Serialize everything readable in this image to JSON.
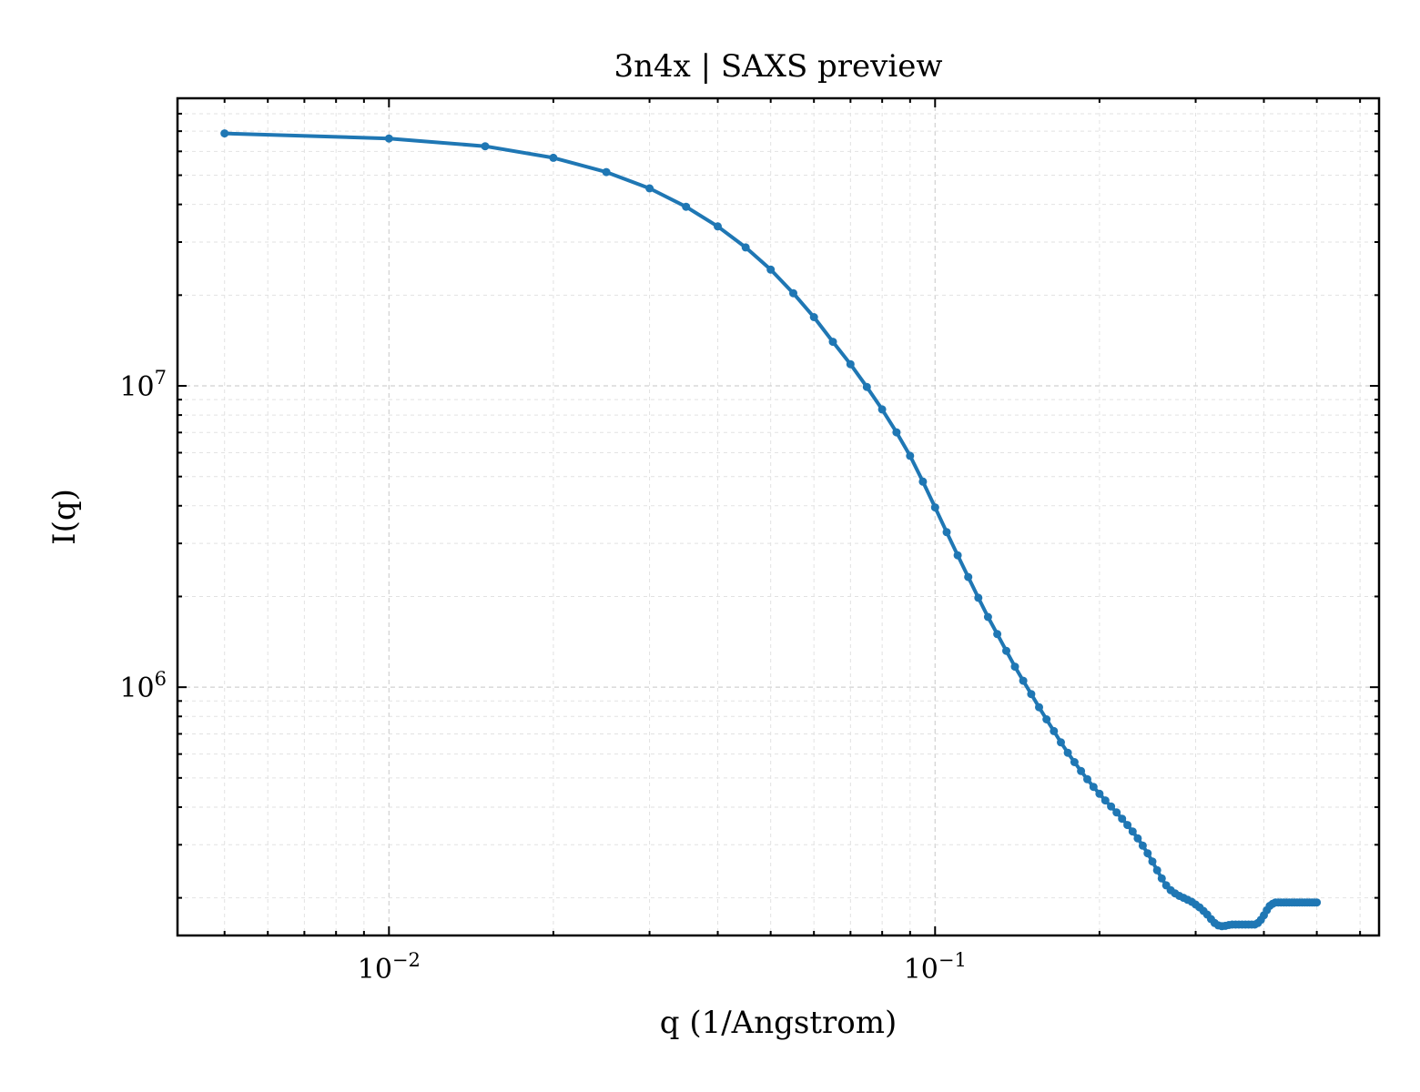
{
  "chart_data": {
    "type": "line",
    "title": "3n4x | SAXS preview",
    "xlabel": "q (1/Angstrom)",
    "ylabel": "I(q)",
    "xscale": "log",
    "yscale": "log",
    "xlim": [
      0.0041,
      0.65
    ],
    "ylim": [
      150000,
      90000000
    ],
    "grid": true,
    "legend": "none",
    "line_color": "#1f77b4",
    "x_ticks": [
      {
        "value": 0.01,
        "base": "10",
        "exp": "−2"
      },
      {
        "value": 0.1,
        "base": "10",
        "exp": "−1"
      }
    ],
    "y_ticks": [
      {
        "value": 1000000,
        "base": "10",
        "exp": "6"
      },
      {
        "value": 10000000,
        "base": "10",
        "exp": "7"
      }
    ],
    "series": [
      {
        "x": [
          0.005,
          0.01,
          0.015,
          0.02,
          0.025,
          0.03,
          0.035,
          0.04,
          0.045,
          0.05,
          0.055,
          0.06,
          0.065,
          0.07,
          0.075,
          0.08,
          0.085,
          0.09,
          0.095,
          0.1,
          0.105,
          0.11,
          0.115,
          0.12,
          0.125,
          0.13,
          0.135,
          0.14,
          0.145,
          0.15,
          0.155,
          0.16,
          0.165,
          0.17,
          0.175,
          0.18,
          0.185,
          0.19,
          0.195,
          0.2,
          0.205,
          0.21,
          0.215,
          0.22,
          0.225,
          0.23,
          0.235,
          0.24,
          0.245,
          0.25,
          0.255,
          0.26,
          0.265,
          0.27,
          0.275,
          0.28,
          0.285,
          0.29,
          0.295,
          0.3,
          0.305,
          0.31,
          0.315,
          0.32,
          0.325,
          0.33,
          0.335,
          0.34,
          0.345,
          0.35,
          0.355,
          0.36,
          0.365,
          0.37,
          0.375,
          0.38,
          0.385,
          0.39,
          0.395,
          0.4,
          0.405,
          0.41,
          0.415,
          0.42,
          0.425,
          0.43,
          0.435,
          0.44,
          0.445,
          0.45,
          0.455,
          0.46,
          0.465,
          0.47,
          0.475,
          0.48,
          0.485,
          0.49,
          0.495,
          0.5
        ],
        "y": [
          68800000,
          66200000,
          62400000,
          57100000,
          51200000,
          45200000,
          39300000,
          33800000,
          28800000,
          24300000,
          20300000,
          16900000,
          14000000,
          11800000,
          9920000,
          8350000,
          7010000,
          5860000,
          4810000,
          3950000,
          3270000,
          2740000,
          2320000,
          1980000,
          1710000,
          1500000,
          1320000,
          1170000,
          1050000,
          949000,
          858000,
          782000,
          715000,
          656000,
          606000,
          564000,
          527000,
          495000,
          467000,
          443000,
          421000,
          402000,
          384000,
          366000,
          349000,
          332000,
          315000,
          298000,
          281000,
          264000,
          247000,
          232000,
          220000,
          212000,
          207000,
          203000,
          200000,
          197000,
          194000,
          190000,
          186000,
          181000,
          176000,
          170000,
          165000,
          162000,
          161000,
          161500,
          162500,
          163000,
          163000,
          163000,
          163000,
          163000,
          163000,
          163000,
          163000,
          165000,
          169000,
          175000,
          182000,
          188000,
          191000,
          193000,
          193000,
          193000,
          193000,
          193000,
          193000,
          193000,
          193000,
          193000,
          193000,
          193000,
          193000,
          193000,
          193000,
          193000,
          193000,
          193000
        ]
      }
    ]
  }
}
